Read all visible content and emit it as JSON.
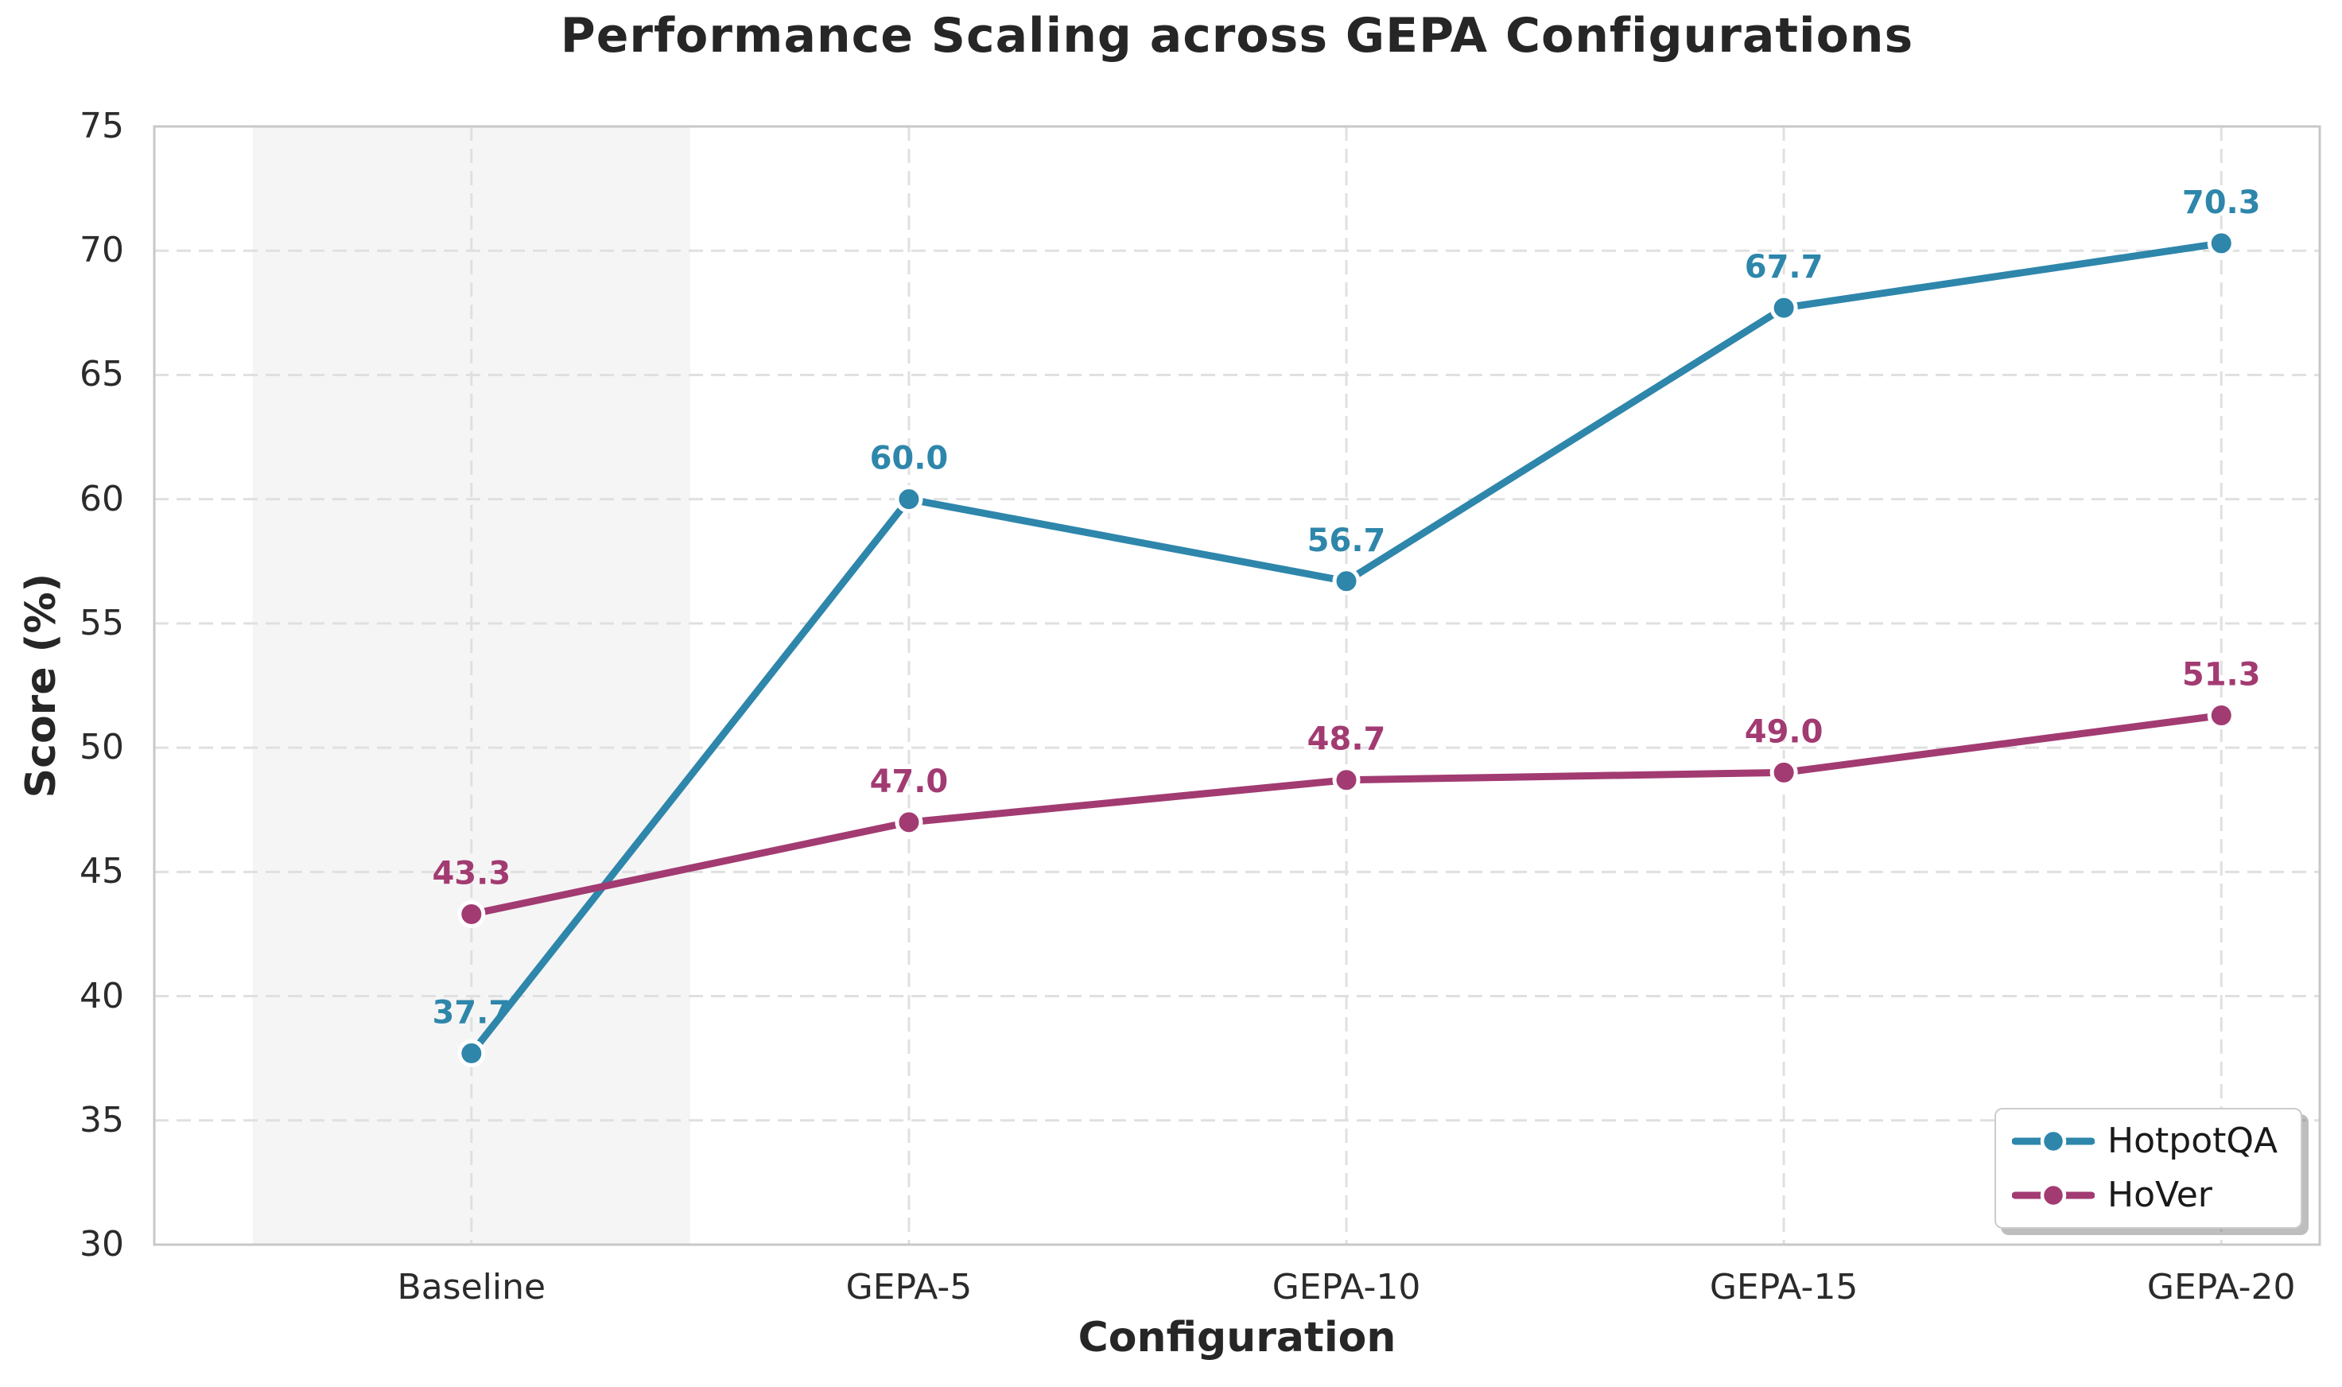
{
  "chart_data": {
    "type": "line",
    "title": "Performance Scaling across GEPA Configurations",
    "xlabel": "Configuration",
    "ylabel": "Score (%)",
    "categories": [
      "Baseline",
      "GEPA-5",
      "GEPA-10",
      "GEPA-15",
      "GEPA-20"
    ],
    "series": [
      {
        "name": "HotpotQA",
        "color": "#2E86AB",
        "values": [
          37.7,
          60.0,
          56.7,
          67.7,
          70.3
        ]
      },
      {
        "name": "HoVer",
        "color": "#A23B72",
        "values": [
          43.3,
          47.0,
          48.7,
          49.0,
          51.3
        ]
      }
    ],
    "ylim": [
      30,
      75
    ],
    "xlim": [
      -0.725,
      4.225
    ],
    "yticks": [
      30,
      35,
      40,
      45,
      50,
      55,
      60,
      65,
      70,
      75
    ],
    "grid": true,
    "value_labels_decimals": 1,
    "legend": {
      "position": "lower right",
      "entries": [
        "HotpotQA",
        "HoVer"
      ]
    },
    "highlight_band": {
      "from": -0.5,
      "to": 0.5,
      "color": "#f5f5f5"
    },
    "appearance": {
      "background": "#ffffff",
      "spine_color": "#c8c8c8",
      "grid_color": "#e0e0e0",
      "marker_edge_color": "#ffffff",
      "text_color": "#262626",
      "tick_color": "#2b2b2b"
    }
  }
}
